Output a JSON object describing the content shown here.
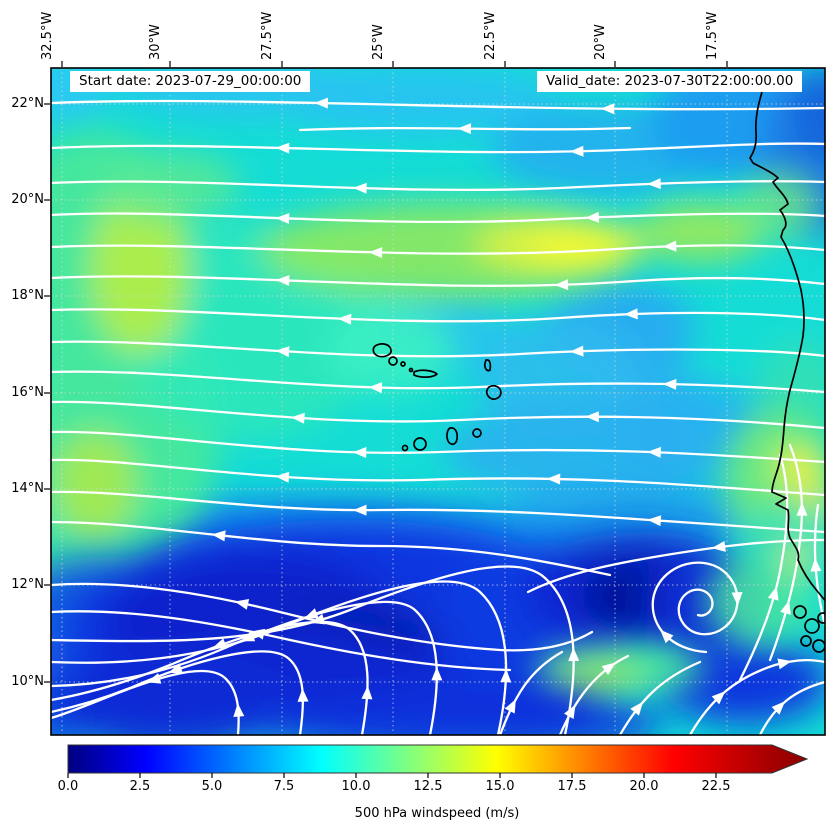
{
  "plot": {
    "start_label": "Start date: 2023-07-29_00:00:00",
    "valid_label": "Valid_date: 2023-07-30T22:00:00.00"
  },
  "axes": {
    "lon_ticks": [
      "32.5°W",
      "30°W",
      "27.5°W",
      "25°W",
      "22.5°W",
      "20°W",
      "17.5°W"
    ],
    "lat_ticks": [
      "22°N",
      "20°N",
      "18°N",
      "16°N",
      "14°N",
      "12°N",
      "10°N"
    ]
  },
  "colorbar": {
    "ticks": [
      "0.0",
      "2.5",
      "5.0",
      "7.5",
      "10.0",
      "12.5",
      "15.0",
      "17.5",
      "20.0",
      "22.5"
    ],
    "label": "500 hPa windspeed (m/s)",
    "colormap": "jet",
    "colormap_stops": [
      "#00007f",
      "#0000ff",
      "#00ffff",
      "#ffff00",
      "#ff0000",
      "#8b0000"
    ],
    "extended_arrow": "right"
  },
  "colors": {
    "streamline": "#ffffff",
    "coastline": "#000000",
    "background_field": "#15ddd6",
    "calm_core": "#041595",
    "jet_core": "#f7fa2e"
  },
  "chart_data": {
    "type": "heatmap",
    "subtype": "filled-contour windspeed field with white streamlines and arrowheads",
    "title": "",
    "annotations": [
      "Start date: 2023-07-29_00:00:00",
      "Valid_date: 2023-07-30T22:00:00.00"
    ],
    "xlabel_ticks": [
      "32.5°W",
      "30°W",
      "27.5°W",
      "25°W",
      "22.5°W",
      "20°W",
      "17.5°W"
    ],
    "ylabel_ticks": [
      "22°N",
      "20°N",
      "18°N",
      "16°N",
      "14°N",
      "12°N",
      "10°N"
    ],
    "lon_range_deg_west": [
      32.75,
      15.3
    ],
    "lat_range_deg_north": [
      8.9,
      22.75
    ],
    "colorbar_label": "500 hPa windspeed (m/s)",
    "colorbar_ticks": [
      0.0,
      2.5,
      5.0,
      7.5,
      10.0,
      12.5,
      15.0,
      17.5,
      20.0,
      22.5
    ],
    "colorbar_range": [
      0,
      25
    ],
    "grid": "dotted graticule at tick positions",
    "legend_position": "bottom colorbar",
    "windspeed_grid_ms": {
      "lons": [
        -32.5,
        -30,
        -27.5,
        -25,
        -22.5,
        -20,
        -17.5
      ],
      "lats": [
        22,
        20,
        18,
        16,
        14,
        12,
        10
      ],
      "values": [
        [
          8,
          9,
          8,
          7,
          7,
          5,
          4
        ],
        [
          11,
          11,
          10,
          10,
          10,
          7,
          5
        ],
        [
          12,
          12,
          11,
          12,
          14,
          8,
          7
        ],
        [
          12,
          13,
          10,
          9,
          8,
          7,
          9
        ],
        [
          13,
          12,
          10,
          9,
          8,
          7,
          13
        ],
        [
          9,
          6,
          4,
          3,
          2,
          3,
          9
        ],
        [
          6,
          4,
          3,
          4,
          3,
          5,
          7
        ]
      ]
    },
    "features": {
      "flow": "easterly (westward) flow across northern half, arrows point west",
      "jet_maximum": "~15 m/s yellow patch near 19°N 22.5°W",
      "cyclonic_vortex": "counterclockwise spiral near 11.7°N 19.5°W",
      "calm_region": "<3 m/s dark blue area near 10-12°N between 23°W and 29°W",
      "geography": "Cape Verde islands near 15-17°N 23-25°W; West African coastline on right edge"
    }
  }
}
